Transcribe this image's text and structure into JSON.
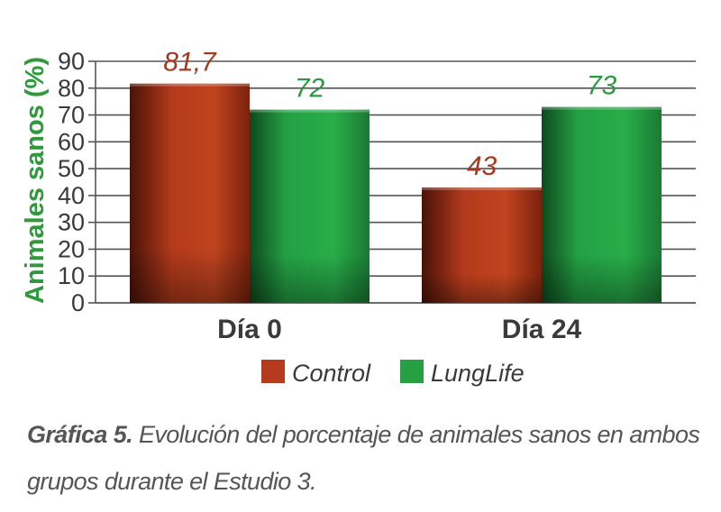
{
  "chart_data": {
    "type": "bar",
    "ylabel": "Animales sanos (%)",
    "ylim": [
      0,
      90
    ],
    "yticks": [
      0,
      10,
      20,
      30,
      40,
      50,
      60,
      70,
      80,
      90
    ],
    "categories": [
      "Día 0",
      "Día 24"
    ],
    "series": [
      {
        "name": "Control",
        "values": [
          81.7,
          43
        ],
        "labels": [
          "81,7",
          "43"
        ],
        "color": "#b53a1e"
      },
      {
        "name": "LungLife",
        "values": [
          72,
          73
        ],
        "labels": [
          "72",
          "73"
        ],
        "color": "#27a043"
      }
    ],
    "grid": true,
    "legend": "bottom"
  },
  "caption": {
    "title": "Gráfica 5.",
    "text": "Evolución del porcentaje de animales sanos en ambos grupos durante el Estudio 3."
  }
}
